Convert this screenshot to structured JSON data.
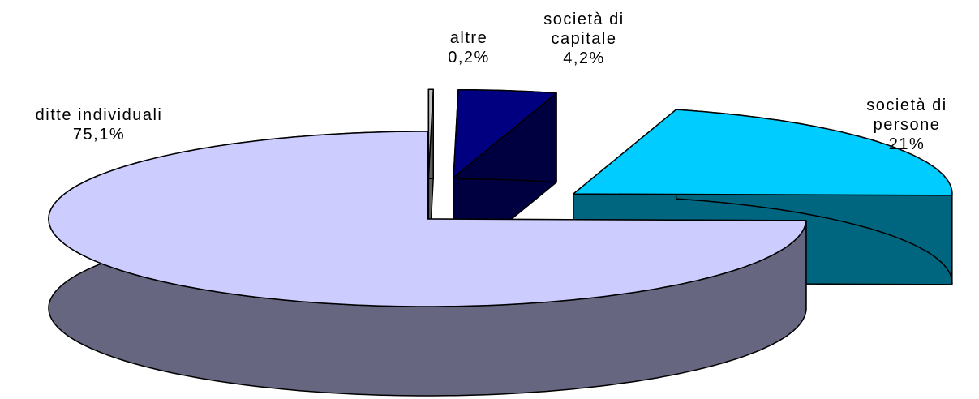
{
  "chart_data": {
    "type": "pie3d",
    "categories": [
      "altre",
      "società di capitale",
      "società di persone",
      "ditte individuali"
    ],
    "values": [
      0.2,
      4.2,
      21,
      75.1
    ],
    "value_labels": [
      "0,2%",
      "4,2%",
      "21%",
      "75,1%"
    ],
    "colors": [
      "#c0c0c0",
      "#000080",
      "#00ccff",
      "#ccccff"
    ]
  }
}
